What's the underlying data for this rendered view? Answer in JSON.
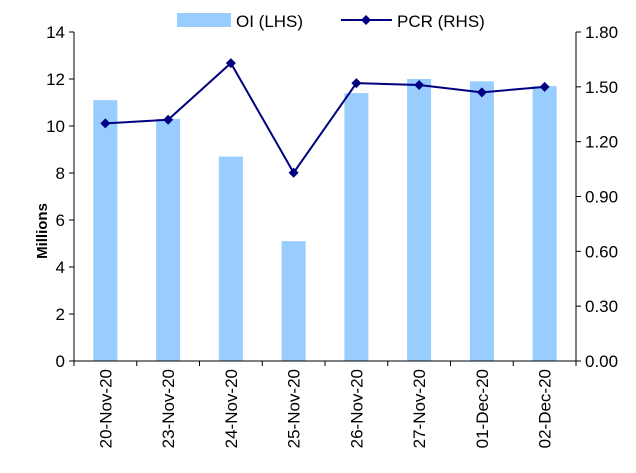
{
  "chart_data": {
    "type": "bar+line",
    "categories": [
      "20-Nov-20",
      "23-Nov-20",
      "24-Nov-20",
      "25-Nov-20",
      "26-Nov-20",
      "27-Nov-20",
      "01-Dec-20",
      "02-Dec-20"
    ],
    "series": [
      {
        "name": "OI (LHS)",
        "type": "bar",
        "axis": "left",
        "color": "#99ccff",
        "values": [
          11.1,
          10.3,
          8.7,
          5.1,
          11.4,
          12.0,
          11.9,
          11.7
        ]
      },
      {
        "name": "PCR (RHS)",
        "type": "line",
        "axis": "right",
        "color": "#000080",
        "marker": "diamond",
        "values": [
          1.3,
          1.32,
          1.63,
          1.03,
          1.52,
          1.51,
          1.47,
          1.5
        ]
      }
    ],
    "ylabel": "Millions",
    "ylim": [
      0,
      14
    ],
    "y_ticks": [
      "0",
      "2",
      "4",
      "6",
      "8",
      "10",
      "12",
      "14"
    ],
    "y2lim": [
      0,
      1.8
    ],
    "y2_ticks": [
      "0.00",
      "0.30",
      "0.60",
      "0.90",
      "1.20",
      "1.50",
      "1.80"
    ],
    "legend_position": "top",
    "grid": false
  }
}
